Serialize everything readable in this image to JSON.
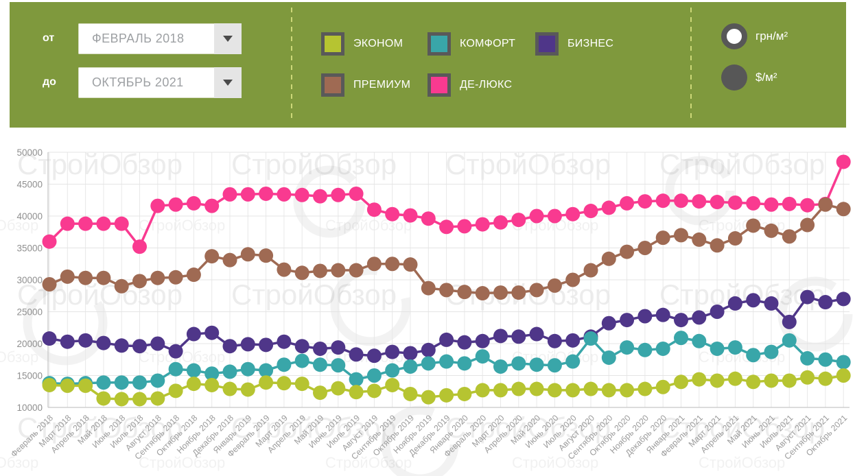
{
  "header": {
    "date_from_label": "от",
    "date_from_value": "ФЕВРАЛЬ 2018",
    "date_to_label": "до",
    "date_to_value": "ОКТЯБРЬ 2021",
    "currency_options": [
      {
        "label": "грн/м²",
        "selected": true
      },
      {
        "label": "$/м²",
        "selected": false
      }
    ]
  },
  "watermark": {
    "text": "СтройОбзор"
  },
  "colors": {
    "header_bg": "#7f993d",
    "separator_dash": "#cdd878",
    "swatch_border": "#595959",
    "radio_gray": "#575757",
    "grid_line": "#e6e6e6",
    "axis_line": "#c6c6c6",
    "tick_text": "#8f8f8f"
  },
  "chart_data": {
    "type": "line",
    "marker": "circle",
    "grid": true,
    "legend_position": "top",
    "ylim": [
      10000,
      50000
    ],
    "yticks": [
      10000,
      15000,
      20000,
      25000,
      30000,
      35000,
      40000,
      45000,
      50000
    ],
    "categories": [
      "Февраль 2018",
      "Март 2018",
      "Апрель 2018",
      "Май 2018",
      "Июнь 2018",
      "Июль 2018",
      "Август 2018",
      "Сентябрь 2018",
      "Октябрь 2018",
      "Ноябрь 2018",
      "Декабрь 2018",
      "Январь 2019",
      "Февраль 2019",
      "Март 2019",
      "Апрель 2019",
      "Май 2019",
      "Июнь 2019",
      "Июль 2019",
      "Август 2019",
      "Сентябрь 2019",
      "Октябрь 2019",
      "Ноябрь 2019",
      "Декабрь 2019",
      "Январь 2020",
      "Февраль 2020",
      "Март 2020",
      "Апрель 2020",
      "Май 2020",
      "Июнь 2020",
      "Июль 2020",
      "Август 2020",
      "Сентябрь 2020",
      "Октябрь 2020",
      "Ноябрь 2020",
      "Декабрь 2020",
      "Январь 2021",
      "Февраль 2021",
      "Март 2021",
      "Апрель 2021",
      "Май 2021",
      "Июнь 2021",
      "Июль 2021",
      "Август 2021",
      "Сентябрь 2021",
      "Октябрь 2021"
    ],
    "series": [
      {
        "name": "ЭКОНОМ",
        "color": "#b6c431",
        "values": [
          13500,
          13400,
          13400,
          11400,
          11300,
          11300,
          11400,
          12600,
          13700,
          13500,
          12900,
          12800,
          13900,
          13800,
          13700,
          12300,
          13000,
          12400,
          12600,
          13500,
          12100,
          11600,
          11900,
          12100,
          12700,
          12700,
          12900,
          12900,
          12700,
          12700,
          12900,
          12700,
          12700,
          12900,
          13200,
          14000,
          14400,
          14200,
          14500,
          14000,
          14200,
          14200,
          14700,
          14500,
          15000
        ]
      },
      {
        "name": "КОМФОРТ",
        "color": "#39a6a9",
        "values": [
          13800,
          13700,
          13800,
          13900,
          13900,
          13900,
          14200,
          16000,
          15800,
          15300,
          15600,
          16000,
          15800,
          16700,
          17300,
          16700,
          16600,
          14400,
          15000,
          15800,
          16400,
          16900,
          17200,
          16900,
          18000,
          16400,
          16900,
          16700,
          16600,
          17200,
          20800,
          17800,
          19400,
          19000,
          19200,
          20900,
          20400,
          19200,
          19400,
          18200,
          18700,
          20500,
          17700,
          17500,
          17100
        ]
      },
      {
        "name": "БИЗНЕС",
        "color": "#4f3689",
        "values": [
          20800,
          20300,
          20500,
          20100,
          19700,
          19600,
          20000,
          18800,
          21500,
          21700,
          19600,
          19900,
          19800,
          20300,
          19600,
          19200,
          19400,
          18300,
          18100,
          18700,
          18500,
          19000,
          20600,
          20200,
          20400,
          21200,
          21100,
          21500,
          20400,
          20500,
          21100,
          23200,
          23700,
          24300,
          24500,
          23700,
          24100,
          25000,
          26300,
          26800,
          26300,
          23400,
          27300,
          26500,
          27000
        ]
      },
      {
        "name": "ПРЕМИУМ",
        "color": "#9f6a53",
        "values": [
          29300,
          30500,
          30300,
          30300,
          29000,
          29800,
          30300,
          30400,
          30800,
          33700,
          33100,
          34000,
          33800,
          31600,
          31100,
          31400,
          31500,
          31500,
          32500,
          32500,
          32400,
          28700,
          28400,
          28100,
          27900,
          28000,
          28000,
          28400,
          29100,
          30000,
          31500,
          33300,
          34400,
          35000,
          36600,
          37000,
          36300,
          35400,
          36500,
          38500,
          37700,
          36800,
          38600,
          41800,
          41100
        ]
      },
      {
        "name": "ДЕ-ЛЮКС",
        "color": "#f93a90",
        "values": [
          36000,
          38800,
          38800,
          38800,
          38800,
          35200,
          41600,
          41800,
          42000,
          41600,
          43400,
          43400,
          43500,
          43400,
          43300,
          43100,
          43300,
          43500,
          41000,
          40300,
          40100,
          39600,
          38300,
          38400,
          38700,
          39000,
          39400,
          40000,
          40000,
          40300,
          40800,
          41300,
          42000,
          42300,
          42400,
          42400,
          42300,
          42200,
          42100,
          42000,
          41800,
          41900,
          41700,
          41900,
          48500
        ]
      }
    ]
  }
}
